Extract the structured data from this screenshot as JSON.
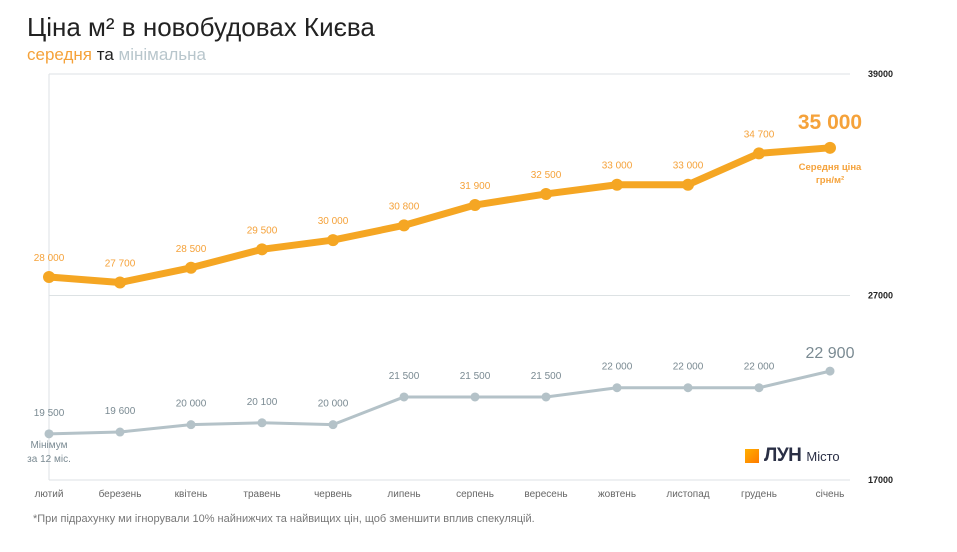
{
  "title": "Ціна м² в новобудовах Києва",
  "subtitle": {
    "avg": "середня",
    "and": "та",
    "min": "мінімальна"
  },
  "footnote": "*При підрахунку ми ігнорували 10% найнижчих та найвищих цін, щоб зменшити вплив спекуляцій.",
  "logo": {
    "word": "ЛУН",
    "city": "Місто"
  },
  "colors": {
    "avg": "#f5a623",
    "min": "#b4c2c8",
    "avg_label": "#f5a23a",
    "min_label": "#7a8a92"
  },
  "chart_data": {
    "type": "line",
    "categories": [
      "лютий",
      "березень",
      "квітень",
      "травень",
      "червень",
      "липень",
      "серпень",
      "вересень",
      "жовтень",
      "листопад",
      "грудень",
      "січень"
    ],
    "series": [
      {
        "key": "avg",
        "values": [
          28000,
          27700,
          28500,
          29500,
          30000,
          30800,
          31900,
          32500,
          33000,
          33000,
          34700,
          35000
        ],
        "labels": [
          "28 000",
          "27 700",
          "28 500",
          "29 500",
          "30 000",
          "30 800",
          "31 900",
          "32 500",
          "33 000",
          "33 000",
          "34 700",
          "35 000"
        ],
        "end_annotation": [
          "Середня ціна",
          "грн/м²"
        ]
      },
      {
        "key": "min",
        "values": [
          19500,
          19600,
          20000,
          20100,
          20000,
          21500,
          21500,
          21500,
          22000,
          22000,
          22000,
          22900
        ],
        "labels": [
          "19 500",
          "19 600",
          "20 000",
          "20 100",
          "20 000",
          "21 500",
          "21 500",
          "21 500",
          "22 000",
          "22 000",
          "22 000",
          "22 900"
        ],
        "start_annotation": [
          "Мінімум",
          "за 12 міс."
        ]
      }
    ],
    "ylim": [
      17000,
      39000
    ],
    "yticks": [
      "39000",
      "27000",
      "17000"
    ],
    "ytick_values": [
      39000,
      27000,
      17000
    ],
    "grid": true
  }
}
